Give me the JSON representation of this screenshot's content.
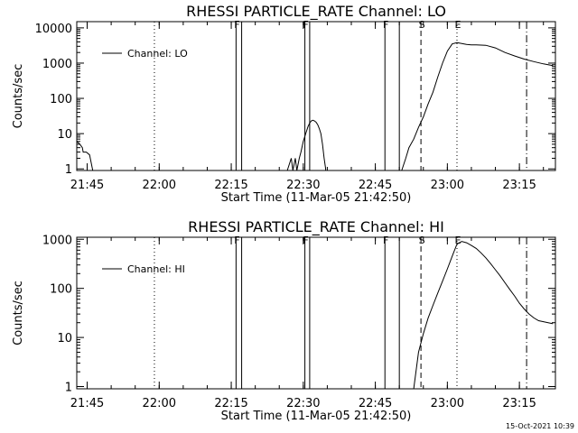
{
  "footer": {
    "timestamp": "15-Oct-2021 10:39"
  },
  "chart_data": [
    {
      "type": "line",
      "title": "RHESSI PARTICLE_RATE Channel: LO",
      "xlabel": "Start Time (11-Mar-05 21:42:50)",
      "ylabel": "Counts/sec",
      "yscale": "log",
      "ylim": [
        0.9,
        15000
      ],
      "xlim": [
        "21:42:50",
        "23:22:30"
      ],
      "xticks": [
        "21:45",
        "22:00",
        "22:15",
        "22:30",
        "22:45",
        "23:00",
        "23:15"
      ],
      "yticks": [
        {
          "value": 1,
          "label": "1"
        },
        {
          "value": 10,
          "label": "10"
        },
        {
          "value": 100,
          "label": "100"
        },
        {
          "value": 1000,
          "label": "1000"
        },
        {
          "value": 10000,
          "label": "10000"
        }
      ],
      "legend": {
        "placement": "top-left",
        "entry": "Channel: LO"
      },
      "grid": false,
      "series": [
        {
          "name": "Channel: LO",
          "x": [
            "21:42:50",
            "21:43:30",
            "21:44:00",
            "21:44:10",
            "21:44:30",
            "21:44:50",
            "21:45:30",
            "21:45:30",
            "21:46:10",
            "21:46:10",
            "22:16:40",
            "22:16:40",
            "22:26:40",
            "22:26:40",
            "22:27:30",
            "22:27:30",
            "22:27:50",
            "22:27:50",
            "22:28:20",
            "22:28:20",
            "22:28:40",
            "22:28:40",
            "22:29:10",
            "22:29:30",
            "22:30:00",
            "22:30:30",
            "22:31:00",
            "22:31:20",
            "22:31:40",
            "22:32:00",
            "22:32:20",
            "22:32:40",
            "22:33:00",
            "22:33:20",
            "22:33:40",
            "22:34:00",
            "22:34:20",
            "22:34:40",
            "22:34:40",
            "22:50:30",
            "22:50:30",
            "22:51:20",
            "22:52:00",
            "22:53:00",
            "22:54:00",
            "22:55:00",
            "22:56:00",
            "22:57:00",
            "22:58:00",
            "22:59:00",
            "23:00:00",
            "23:01:00",
            "23:02:00",
            "23:03:00",
            "23:04:00",
            "23:05:00",
            "23:06:00",
            "23:08:00",
            "23:10:00",
            "23:12:00",
            "23:14:00",
            "23:16:00",
            "23:18:00",
            "23:20:00",
            "23:22:00"
          ],
          "y": [
            6,
            5,
            4,
            3,
            3,
            3,
            2.5,
            2.5,
            0.9,
            0.9,
            0.9,
            0.9,
            0.9,
            0.9,
            2,
            2,
            0.9,
            0.9,
            2,
            2,
            0.9,
            0.9,
            2,
            3,
            6,
            10,
            16,
            20,
            23,
            24,
            23,
            21,
            18,
            14,
            10,
            5,
            2,
            1,
            0.9,
            0.9,
            0.9,
            2,
            4,
            7,
            15,
            30,
            70,
            150,
            400,
            1000,
            2200,
            3500,
            3800,
            3600,
            3400,
            3300,
            3300,
            3200,
            2700,
            2000,
            1600,
            1300,
            1100,
            950,
            850
          ]
        }
      ],
      "vertical_markers": [
        {
          "x": "22:16:00",
          "label": "F",
          "style": "solid"
        },
        {
          "x": "22:17:10",
          "label": "",
          "style": "solid"
        },
        {
          "x": "22:30:20",
          "label": "F",
          "style": "solid"
        },
        {
          "x": "22:31:20",
          "label": "",
          "style": "solid"
        },
        {
          "x": "22:47:00",
          "label": "F",
          "style": "solid"
        },
        {
          "x": "22:50:00",
          "label": "",
          "style": "solid"
        },
        {
          "x": "22:54:30",
          "label": "S",
          "style": "dashed"
        },
        {
          "x": "23:02:00",
          "label": "E",
          "style": "dotted"
        },
        {
          "x": "21:59:00",
          "label": "",
          "style": "dotted"
        },
        {
          "x": "23:16:30",
          "label": "",
          "style": "dashdot"
        }
      ]
    },
    {
      "type": "line",
      "title": "RHESSI PARTICLE_RATE Channel: HI",
      "xlabel": "Start Time (11-Mar-05 21:42:50)",
      "ylabel": "Counts/sec",
      "yscale": "log",
      "ylim": [
        0.9,
        1100
      ],
      "xlim": [
        "21:42:50",
        "23:22:30"
      ],
      "xticks": [
        "21:45",
        "22:00",
        "22:15",
        "22:30",
        "22:45",
        "23:00",
        "23:15"
      ],
      "yticks": [
        {
          "value": 1,
          "label": "1"
        },
        {
          "value": 10,
          "label": "10"
        },
        {
          "value": 100,
          "label": "100"
        },
        {
          "value": 1000,
          "label": "1000"
        }
      ],
      "legend": {
        "placement": "top-left",
        "entry": "Channel: HI"
      },
      "grid": false,
      "series": [
        {
          "name": "Channel: HI",
          "x": [
            "22:53:00",
            "22:54:00",
            "22:55:00",
            "22:56:00",
            "22:57:00",
            "22:58:00",
            "22:59:00",
            "23:00:00",
            "23:01:00",
            "23:02:00",
            "23:03:00",
            "23:04:00",
            "23:05:00",
            "23:06:00",
            "23:07:00",
            "23:08:00",
            "23:09:00",
            "23:10:00",
            "23:11:00",
            "23:12:00",
            "23:13:00",
            "23:14:00",
            "23:15:00",
            "23:16:00",
            "23:17:00",
            "23:18:00",
            "23:19:00",
            "23:20:00",
            "23:21:00",
            "23:22:00"
          ],
          "y": [
            0.9,
            5,
            12,
            25,
            45,
            80,
            140,
            250,
            450,
            800,
            900,
            850,
            750,
            650,
            530,
            420,
            320,
            240,
            180,
            130,
            95,
            70,
            50,
            38,
            30,
            25,
            22,
            21,
            20,
            19
          ]
        }
      ],
      "vertical_markers": [
        {
          "x": "22:16:00",
          "label": "F",
          "style": "solid"
        },
        {
          "x": "22:17:10",
          "label": "",
          "style": "solid"
        },
        {
          "x": "22:30:20",
          "label": "F",
          "style": "solid"
        },
        {
          "x": "22:31:20",
          "label": "",
          "style": "solid"
        },
        {
          "x": "22:47:00",
          "label": "F",
          "style": "solid"
        },
        {
          "x": "22:50:00",
          "label": "",
          "style": "solid"
        },
        {
          "x": "22:54:30",
          "label": "S",
          "style": "dashed"
        },
        {
          "x": "23:02:00",
          "label": "E",
          "style": "dotted"
        },
        {
          "x": "21:59:00",
          "label": "",
          "style": "dotted"
        },
        {
          "x": "23:16:30",
          "label": "",
          "style": "dashdot"
        }
      ]
    }
  ]
}
